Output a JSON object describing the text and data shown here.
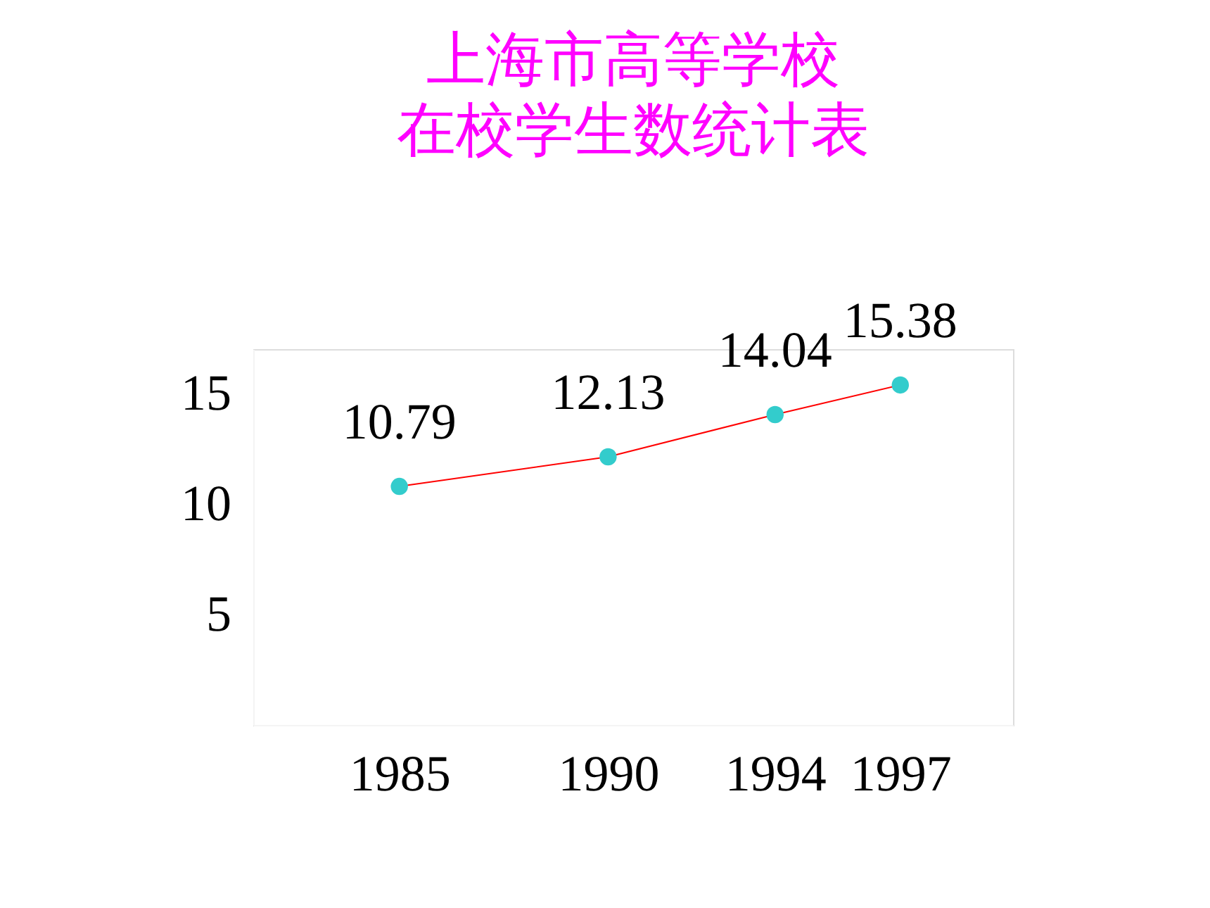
{
  "chart_data": {
    "type": "line",
    "title": [
      "上海市高等学校",
      "在校学生数统计表"
    ],
    "x": [
      1985,
      1990,
      1994,
      1997
    ],
    "series": [
      {
        "values": [
          10.79,
          12.13,
          14.04,
          15.38
        ],
        "color": "#ff0000"
      }
    ],
    "marker": "circle",
    "line_style": "solid",
    "data_labels": true,
    "xlim": [
      1981.5,
      1999.7
    ],
    "xticks": [
      1985,
      1990,
      1994,
      1997
    ],
    "ylim": [
      0,
      17
    ],
    "yticks": [
      5,
      10,
      15
    ],
    "grid": false
  }
}
